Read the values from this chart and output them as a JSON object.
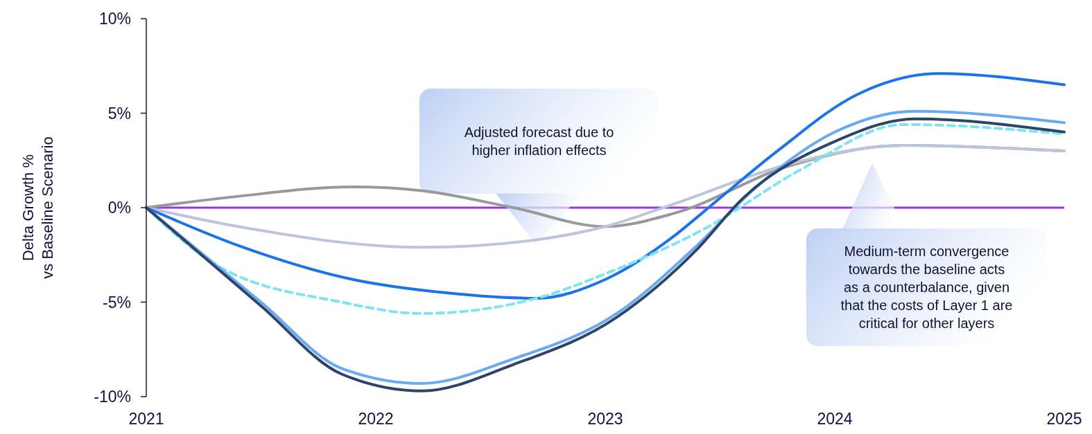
{
  "chart_data": {
    "type": "line",
    "ylabel": "Delta Growth %\nvs Baseline Scenario",
    "xlim": [
      2021,
      2025
    ],
    "xticks": [
      2021,
      2022,
      2023,
      2024,
      2025
    ],
    "ylim": [
      -10,
      10
    ],
    "yticks": [
      {
        "value": -10,
        "label": "-10%"
      },
      {
        "value": -5,
        "label": "-5%"
      },
      {
        "value": 0,
        "label": "0%"
      },
      {
        "value": 5,
        "label": "5%"
      },
      {
        "value": 10,
        "label": "10%"
      }
    ],
    "grid": false,
    "ref_lines": [
      {
        "axis": "y",
        "value": 0,
        "color": "#9b35e0"
      }
    ],
    "series": [
      {
        "color": "#999999",
        "x": [
          2021,
          2021.4,
          2021.9,
          2022.2,
          2022.6,
          2023,
          2023.3,
          2023.8,
          2024.3,
          2025
        ],
        "values": [
          0,
          0.6,
          1.1,
          0.9,
          0,
          -1,
          -0.3,
          2.2,
          3.3,
          3.0
        ]
      },
      {
        "color": "#bcc6da",
        "x": [
          2021,
          2021.4,
          2022.2,
          2022.7,
          2023,
          2023.3,
          2023.8,
          2024.3,
          2025
        ],
        "values": [
          0,
          -1,
          -2.1,
          -1.7,
          -1,
          0.2,
          2.3,
          3.3,
          3.0
        ]
      },
      {
        "color": "#1a73e8",
        "x": [
          2021,
          2021.4,
          2021.9,
          2022.3,
          2022.7,
          2023,
          2023.3,
          2023.45,
          2023.75,
          2024.1,
          2024.45,
          2025
        ],
        "values": [
          0,
          -2,
          -3.8,
          -4.5,
          -4.8,
          -3.8,
          -1.5,
          0,
          3,
          6,
          7.1,
          6.5
        ]
      },
      {
        "color": "#7fe3f5",
        "line_style": "dashed",
        "x": [
          2021,
          2021.3,
          2021.85,
          2022.2,
          2022.7,
          2023,
          2023.45,
          2023.85,
          2024.3,
          2025
        ],
        "values": [
          0,
          -3,
          -5,
          -5.6,
          -4.8,
          -3.5,
          -1,
          2,
          4.4,
          3.9
        ]
      },
      {
        "color": "#6aaaf2",
        "x": [
          2021,
          2021.5,
          2021.85,
          2022.2,
          2022.6,
          2023.05,
          2023.4,
          2023.65,
          2024,
          2024.35,
          2025
        ],
        "values": [
          0,
          -5,
          -8.5,
          -9.3,
          -8,
          -5.6,
          -2,
          1,
          4,
          5.1,
          4.5
        ]
      },
      {
        "color": "#2d4566",
        "x": [
          2021,
          2021.5,
          2021.85,
          2022.2,
          2022.6,
          2023.05,
          2023.4,
          2023.6,
          2024,
          2024.35,
          2025
        ],
        "values": [
          0,
          -5.2,
          -8.8,
          -9.7,
          -8.3,
          -5.8,
          -2.2,
          0.5,
          3.5,
          4.7,
          4.0
        ]
      }
    ],
    "annotations": [
      "Adjusted forecast due to\nhigher inflation effects",
      "Medium-term convergence\ntowards the baseline acts\nas a counterbalance, given\nthat the costs of Layer 1 are\ncritical for other layers"
    ]
  }
}
